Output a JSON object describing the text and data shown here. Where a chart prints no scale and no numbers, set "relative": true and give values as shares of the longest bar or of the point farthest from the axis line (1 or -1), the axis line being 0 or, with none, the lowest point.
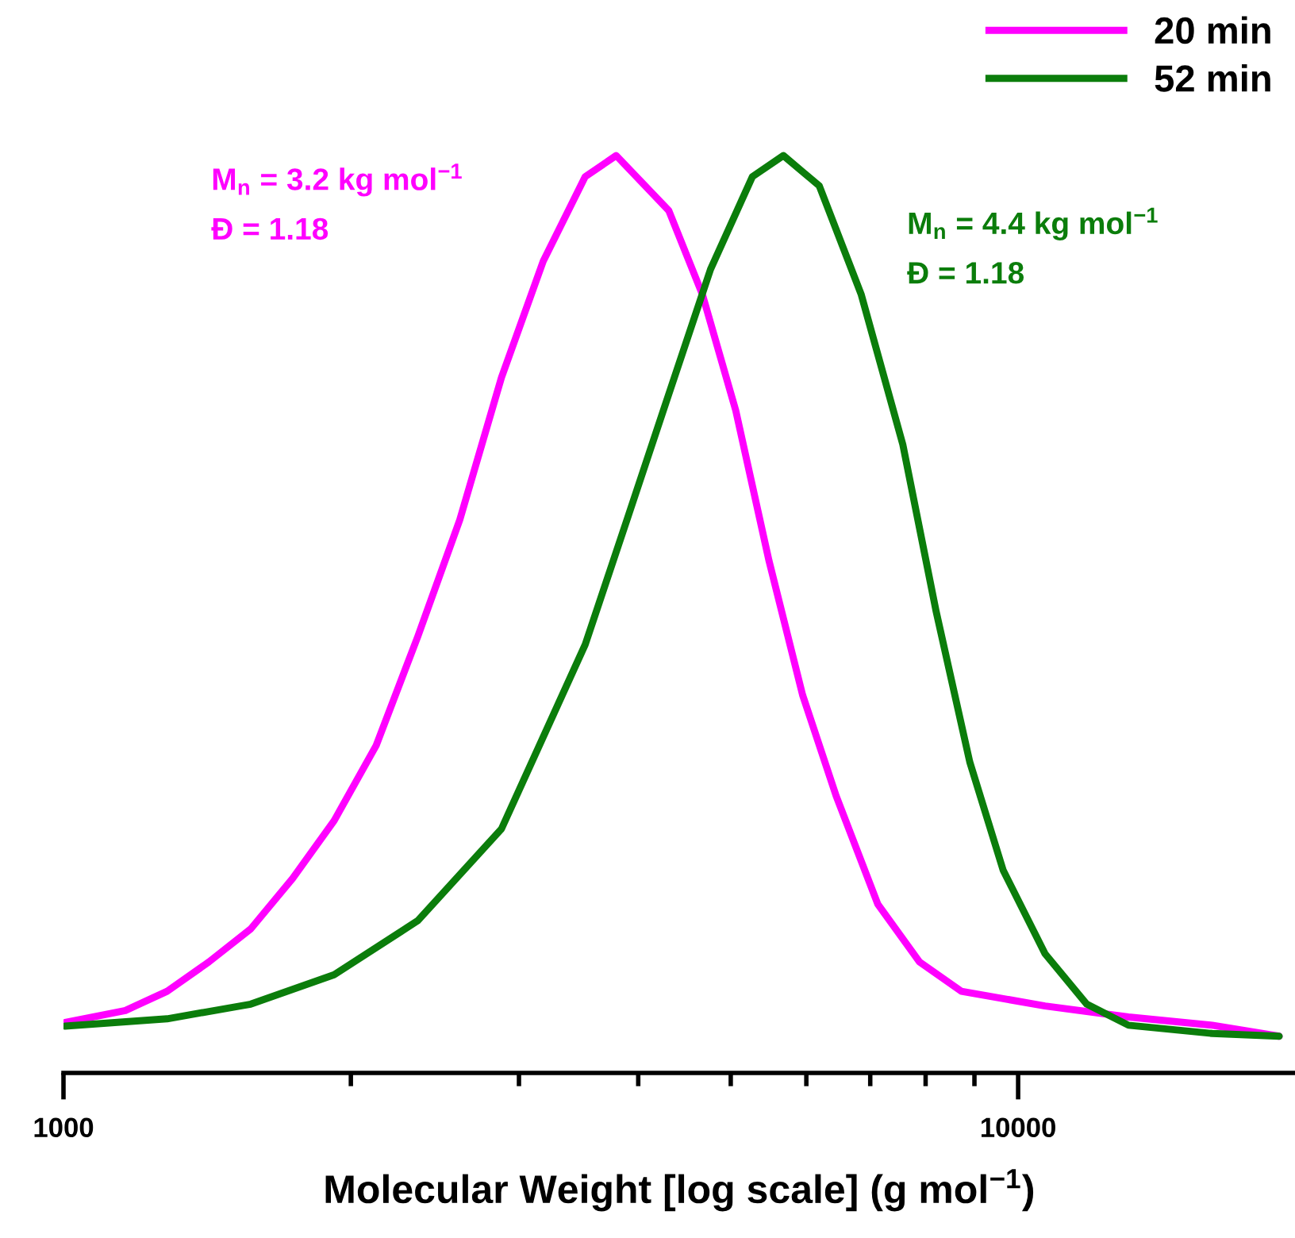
{
  "chart_data": {
    "type": "line",
    "relative": true,
    "log": "x",
    "xlabel": "Molecular Weight [log scale] (g mol$^{−1}$)",
    "xlim": [
      1000,
      19500
    ],
    "xticks": [
      1000,
      {
        "value": 2000,
        "label": null
      },
      {
        "value": 3000,
        "label": null
      },
      {
        "value": 4000,
        "label": null
      },
      {
        "value": 5000,
        "label": null
      },
      {
        "value": 6000,
        "label": null
      },
      {
        "value": 7000,
        "label": null
      },
      {
        "value": 8000,
        "label": null
      },
      {
        "value": 9000,
        "label": null
      },
      10000
    ],
    "tick_labels": "x",
    "grid": false,
    "legend": "top right",
    "line_style": "solid",
    "marker": "none",
    "annotations": [
      "M$_{n}$ = 3.2 kg mol$^{−1}$\nĐ = 1.18",
      "M$_{n}$ = 4.4 kg mol$^{−1}$\nĐ = 1.18"
    ],
    "series": [
      {
        "name": "20 min",
        "color": "#ff00ff",
        "x": [
          1004,
          1161,
          1284,
          1420,
          1571,
          1738,
          1921,
          2126,
          2351,
          2601,
          2876,
          3181,
          3520,
          3793,
          4306,
          4668,
          5061,
          5484,
          5946,
          6447,
          7129,
          7883,
          8721,
          10670,
          13050,
          15970,
          18770
        ],
        "values": [
          0.055,
          0.068,
          0.089,
          0.121,
          0.157,
          0.212,
          0.275,
          0.357,
          0.476,
          0.603,
          0.758,
          0.885,
          0.977,
          1.0,
          0.94,
          0.849,
          0.722,
          0.558,
          0.412,
          0.302,
          0.184,
          0.121,
          0.089,
          0.073,
          0.061,
          0.052,
          0.04
        ]
      },
      {
        "name": "52 min",
        "color": "#0b7d0b",
        "x": [
          1004,
          1284,
          1571,
          1921,
          2351,
          2876,
          3520,
          3893,
          4306,
          4762,
          5268,
          5677,
          6190,
          6847,
          7572,
          8206,
          8899,
          9645,
          10670,
          11800,
          13050,
          15970,
          18770
        ],
        "values": [
          0.051,
          0.059,
          0.075,
          0.107,
          0.166,
          0.266,
          0.467,
          0.603,
          0.74,
          0.876,
          0.977,
          1.0,
          0.967,
          0.849,
          0.685,
          0.503,
          0.339,
          0.221,
          0.13,
          0.075,
          0.052,
          0.043,
          0.04
        ]
      }
    ]
  }
}
